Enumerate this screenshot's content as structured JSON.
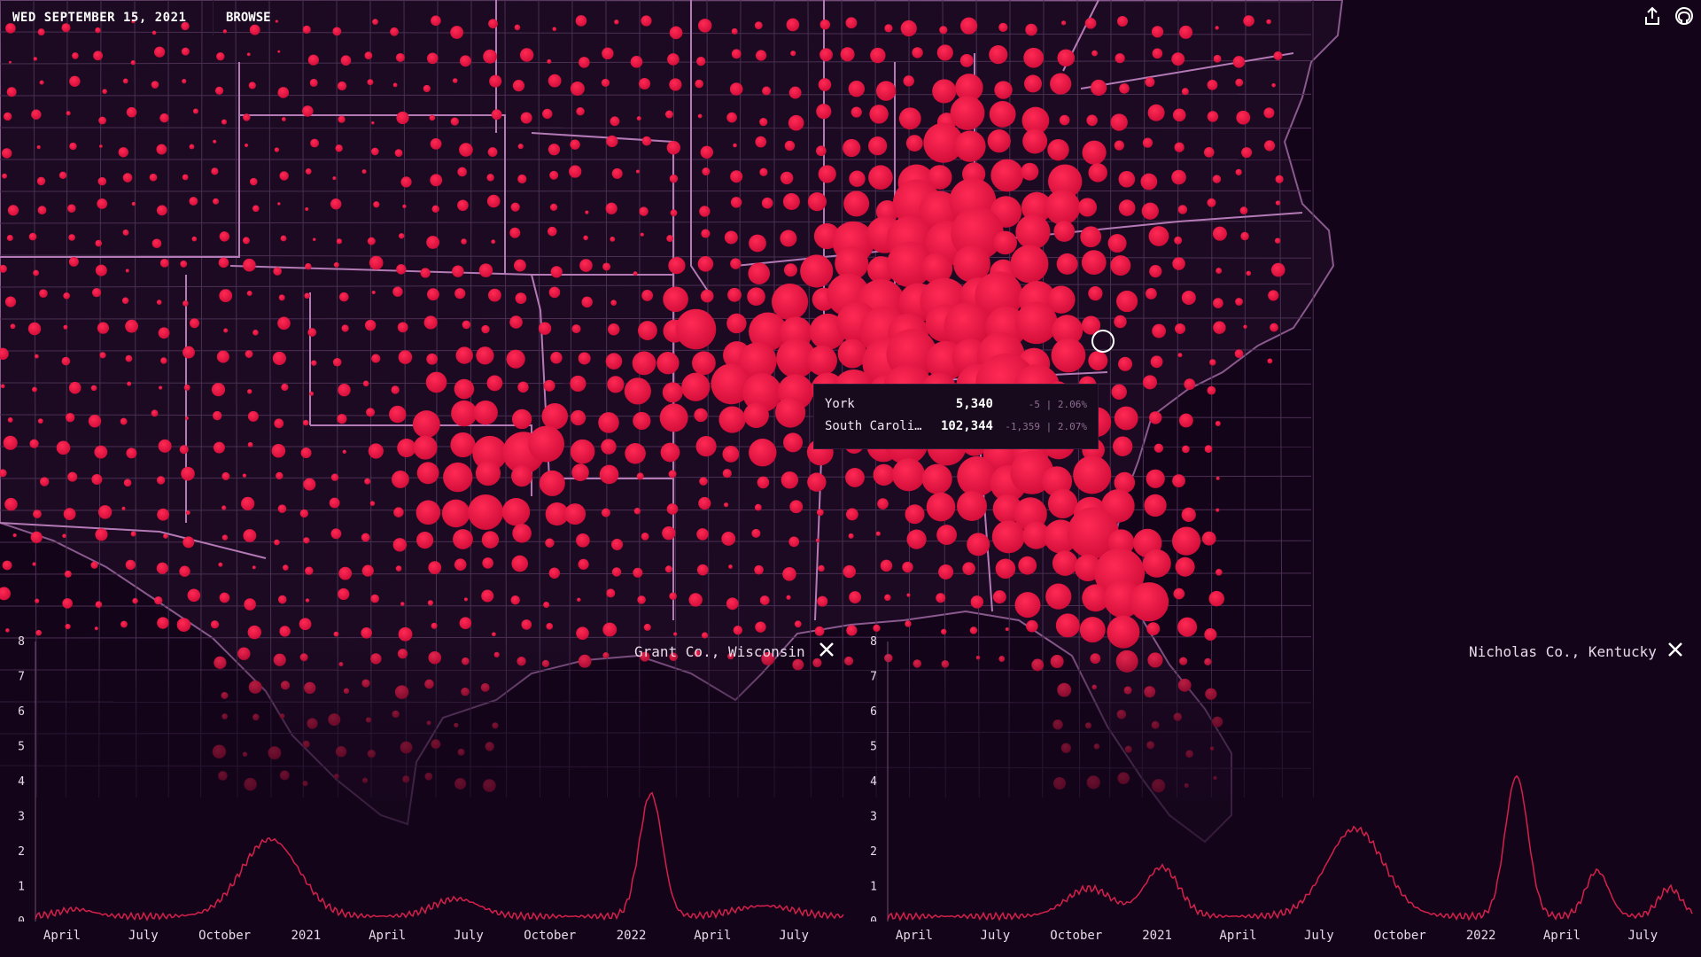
{
  "header": {
    "date": "WED SEPTEMBER 15, 2021",
    "browse_label": "BROWSE"
  },
  "icons": {
    "share": "share-icon",
    "github": "github-icon"
  },
  "colors": {
    "background": "#14041a",
    "bubble": "#e8123f",
    "border": "#b47ab6",
    "line": "#d4204a"
  },
  "tooltip": {
    "rows": [
      {
        "name": "York",
        "value": "5,340",
        "delta": "-5 | 2.06%"
      },
      {
        "name": "South Caroli…",
        "value": "102,344",
        "delta": "-1,359 | 2.07%"
      }
    ]
  },
  "panels": [
    {
      "title": "Grant Co., Wisconsin",
      "y_ticks": [
        "0",
        "1",
        "2",
        "3",
        "4",
        "5",
        "6",
        "7",
        "8"
      ],
      "x_ticks": [
        "April",
        "July",
        "October",
        "2021",
        "April",
        "July",
        "October",
        "2022",
        "April",
        "July"
      ]
    },
    {
      "title": "Nicholas Co., Kentucky",
      "y_ticks": [
        "0",
        "1",
        "2",
        "3",
        "4",
        "5",
        "6",
        "7",
        "8"
      ],
      "x_ticks": [
        "April",
        "July",
        "October",
        "2021",
        "April",
        "July",
        "October",
        "2022",
        "April",
        "July"
      ]
    }
  ]
}
